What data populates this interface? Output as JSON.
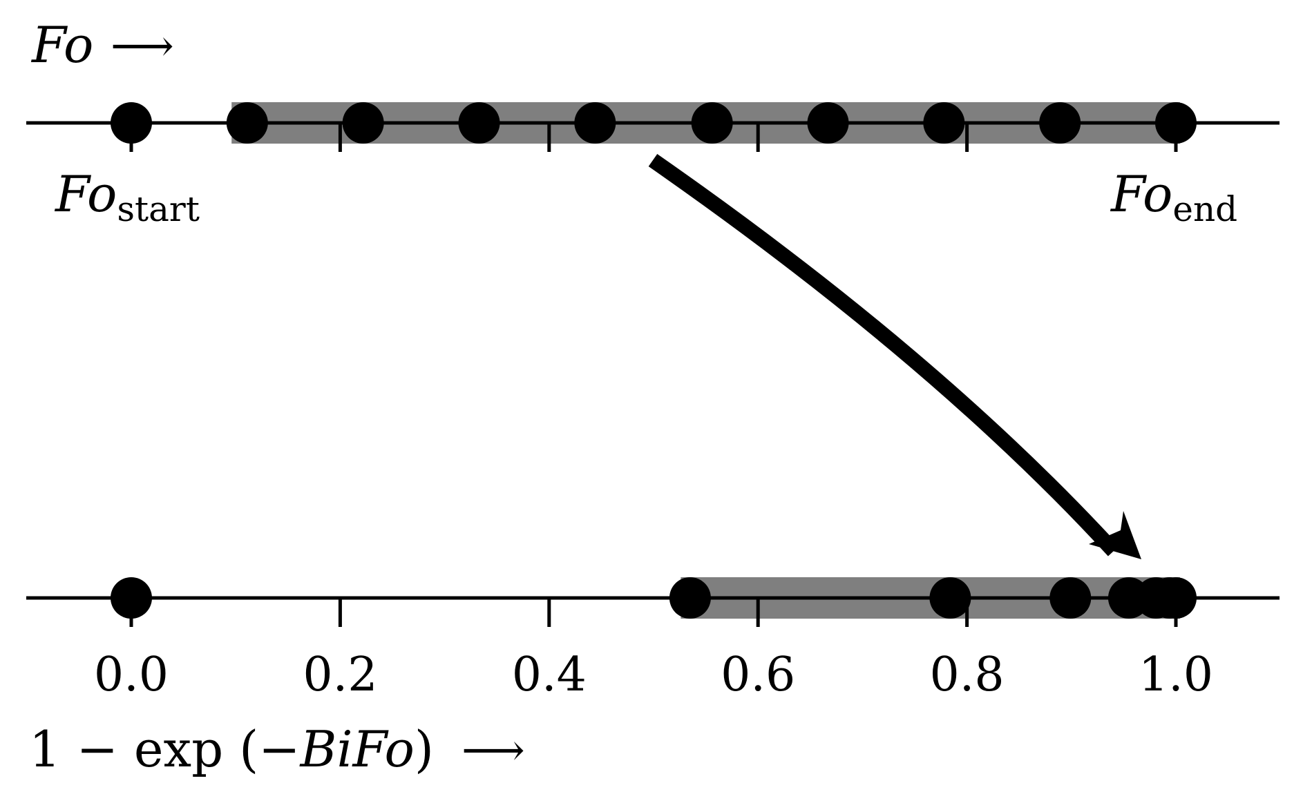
{
  "top_axis": {
    "label": "Fo",
    "arrow": "⟶",
    "start_label_main": "Fo",
    "start_label_sub": "start",
    "end_label_main": "Fo",
    "end_label_sub": "end"
  },
  "bottom_axis": {
    "label_prefix": "1 − exp (−",
    "label_var": "BiFo",
    "label_suffix": ")",
    "arrow": "⟶"
  },
  "chart_data": {
    "type": "scatter",
    "x_range": [
      -0.1,
      1.1
    ],
    "ticks": [
      0.0,
      0.2,
      0.4,
      0.6,
      0.8,
      1.0
    ],
    "tick_labels": [
      "0.0",
      "0.2",
      "0.4",
      "0.6",
      "0.8",
      "1.0"
    ],
    "series": [
      {
        "axis": "top",
        "points": [
          0.0,
          0.111,
          0.222,
          0.333,
          0.444,
          0.556,
          0.667,
          0.778,
          0.889,
          1.0
        ],
        "highlight_range": [
          0.1,
          1.0
        ]
      },
      {
        "axis": "bottom",
        "points": [
          0.0,
          0.535,
          0.784,
          0.899,
          0.955,
          0.981,
          0.994,
          1.0
        ],
        "highlight_range": [
          0.53,
          1.0
        ]
      }
    ],
    "colors": {
      "highlight": "#7f7f7f",
      "points": "#000000",
      "axis": "#000000"
    }
  }
}
